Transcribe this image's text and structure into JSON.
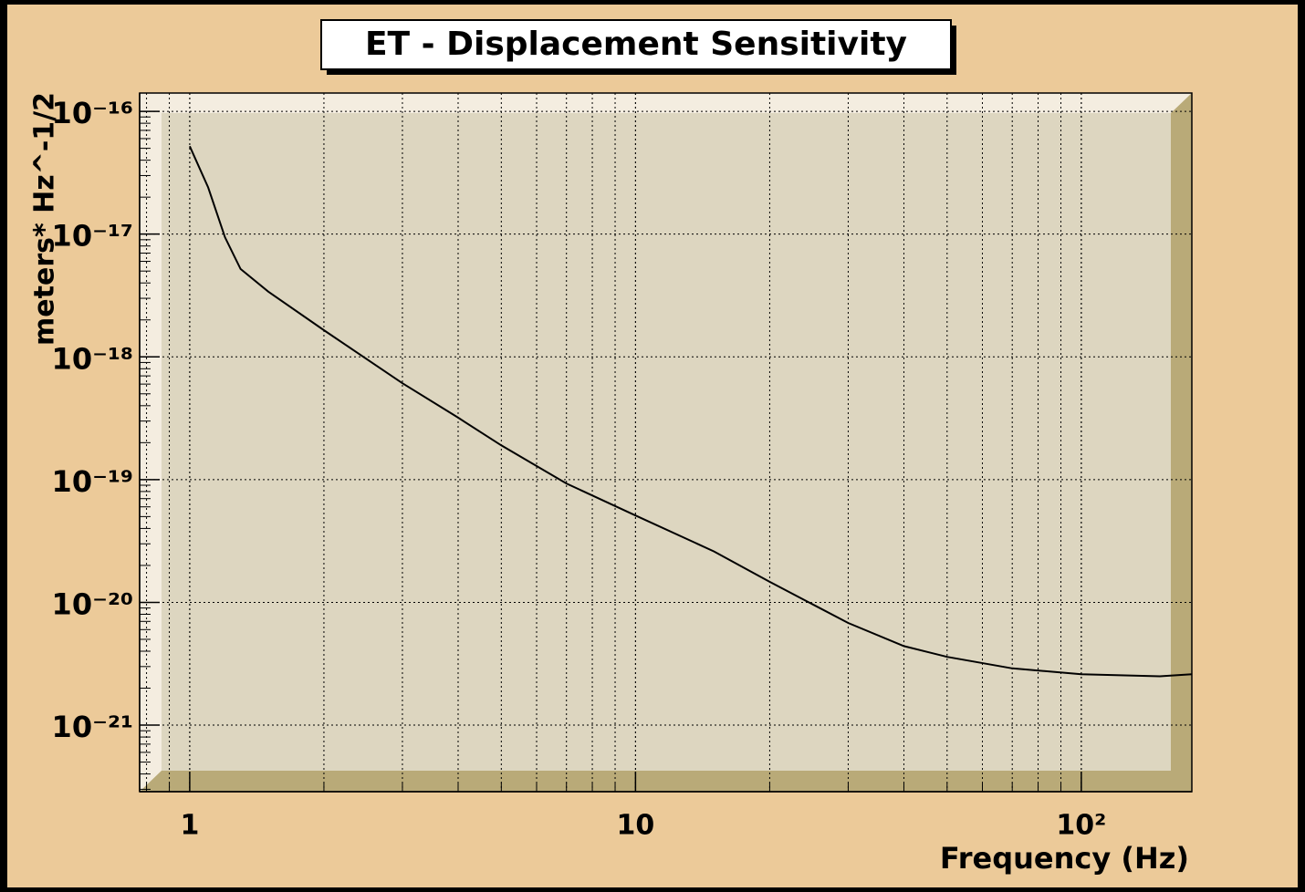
{
  "chart_data": {
    "type": "line",
    "title": "ET - Displacement Sensitivity",
    "x_label": "Frequency (Hz)",
    "y_label": "meters* Hz^-1/2",
    "log_x": true,
    "log_y": true,
    "grid": true,
    "color": "#000000",
    "x": [
      1,
      1.1,
      1.2,
      1.3,
      1.5,
      2,
      3,
      4,
      5,
      7,
      10,
      15,
      20,
      30,
      40,
      50,
      70,
      100,
      150,
      177
    ],
    "values": [
      5.2e-17,
      2.4e-17,
      9.4e-18,
      5.2e-18,
      3.4e-18,
      1.65e-18,
      6.1e-19,
      3.2e-19,
      1.9e-19,
      9.3e-20,
      5.1e-20,
      2.6e-20,
      1.47e-20,
      6.8e-21,
      4.4e-21,
      3.6e-21,
      2.9e-21,
      2.6e-21,
      2.5e-21,
      2.6e-21
    ],
    "xlim": [
      0.772,
      177
    ],
    "ylim": [
      2.87e-22,
      1.41e-16
    ],
    "xticks": [
      1,
      10,
      {
        "value": 100,
        "label": "10²"
      }
    ],
    "yticks": [
      {
        "value": 1e-16,
        "label": "10⁻¹⁶"
      },
      {
        "value": 1e-17,
        "label": "10⁻¹⁷"
      },
      {
        "value": 1e-18,
        "label": "10⁻¹⁸"
      },
      {
        "value": 1e-19,
        "label": "10⁻¹⁹"
      },
      {
        "value": 1e-20,
        "label": "10⁻²⁰"
      },
      {
        "value": 1e-21,
        "label": "10⁻²¹"
      }
    ]
  }
}
